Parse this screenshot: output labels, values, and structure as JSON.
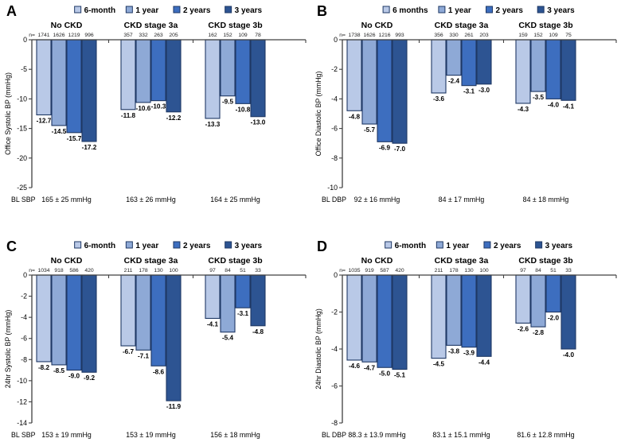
{
  "figure": {
    "type": "four-panel-grouped-bar-figure",
    "background": "#ffffff",
    "series_colors": [
      "#b9c9e7",
      "#8ea9d6",
      "#3d6ebf",
      "#2d5492"
    ],
    "bar_border_color": "#1f3864",
    "axis_color": "#404040",
    "text_color": "#000000",
    "n_prefix": "n="
  },
  "chart_data": [
    {
      "type": "bar",
      "panel_letter": "A",
      "ylabel": "Office Systolic BP (mmHg)",
      "ylim": [
        -25,
        0
      ],
      "ytick_step": 5,
      "grid": false,
      "legend_position": "top",
      "legend": [
        "6-month",
        "1 year",
        "2 years",
        "3 years"
      ],
      "categories": [
        "No CKD",
        "CKD  stage 3a",
        "CKD stage 3b"
      ],
      "series": [
        {
          "name": "6-month",
          "values": [
            -12.7,
            -11.8,
            -13.3
          ],
          "n": [
            1741,
            357,
            162
          ]
        },
        {
          "name": "1 year",
          "values": [
            -14.5,
            -10.6,
            -9.5
          ],
          "n": [
            1626,
            332,
            152
          ]
        },
        {
          "name": "2 years",
          "values": [
            -15.7,
            -10.3,
            -10.8
          ],
          "n": [
            1219,
            263,
            109
          ]
        },
        {
          "name": "3 years",
          "values": [
            -17.2,
            -12.2,
            -13.0
          ],
          "n": [
            996,
            205,
            78
          ]
        }
      ],
      "baseline_row": {
        "label": "BL SBP",
        "values": [
          "165 ± 25 mmHg",
          "163 ± 26 mmHg",
          "164 ± 25 mmHg"
        ]
      }
    },
    {
      "type": "bar",
      "panel_letter": "B",
      "ylabel": "Office Diastolic BP (mmHg)",
      "ylim": [
        -10,
        0
      ],
      "ytick_step": 2,
      "grid": false,
      "legend_position": "top",
      "legend": [
        "6 months",
        "1 year",
        "2 years",
        "3 years"
      ],
      "categories": [
        "No CKD",
        "CKD stage 3a",
        "CKD stage 3b"
      ],
      "series": [
        {
          "name": "6 months",
          "values": [
            -4.8,
            -3.6,
            -4.3
          ],
          "n": [
            1738,
            356,
            159
          ]
        },
        {
          "name": "1 year",
          "values": [
            -5.7,
            -2.4,
            -3.5
          ],
          "n": [
            1626,
            330,
            152
          ]
        },
        {
          "name": "2 years",
          "values": [
            -6.9,
            -3.1,
            -4.0
          ],
          "n": [
            1216,
            261,
            109
          ]
        },
        {
          "name": "3 years",
          "values": [
            -7.0,
            -3.0,
            -4.1
          ],
          "n": [
            993,
            203,
            75
          ]
        }
      ],
      "baseline_row": {
        "label": "BL DBP",
        "values": [
          "92 ± 16 mmHg",
          "84 ± 17 mmHg",
          "84 ± 18 mmHg"
        ]
      }
    },
    {
      "type": "bar",
      "panel_letter": "C",
      "ylabel": "24hr Systolic BP (mmHg)",
      "ylim": [
        -14,
        0
      ],
      "ytick_step": 2,
      "grid": false,
      "legend_position": "top",
      "legend": [
        "6-month",
        "1 year",
        "2 years",
        "3 years"
      ],
      "categories": [
        "No CKD",
        "CKD stage 3a",
        "CKD stage 3b"
      ],
      "series": [
        {
          "name": "6-month",
          "values": [
            -8.2,
            -6.7,
            -4.1
          ],
          "n": [
            1034,
            211,
            97
          ]
        },
        {
          "name": "1 year",
          "values": [
            -8.5,
            -7.1,
            -5.4
          ],
          "n": [
            918,
            178,
            84
          ]
        },
        {
          "name": "2 years",
          "values": [
            -9.0,
            -8.6,
            -3.1
          ],
          "n": [
            586,
            130,
            51
          ]
        },
        {
          "name": "3 years",
          "values": [
            -9.2,
            -11.9,
            -4.8
          ],
          "n": [
            420,
            100,
            33
          ]
        }
      ],
      "baseline_row": {
        "label": "BL SBP",
        "values": [
          "153 ± 19 mmHg",
          "153 ± 19 mmHg",
          "156 ± 18 mmHg"
        ]
      }
    },
    {
      "type": "bar",
      "panel_letter": "D",
      "ylabel": "24hr Diastolic BP (mmHg)",
      "ylim": [
        -8,
        0
      ],
      "ytick_step": 2,
      "grid": false,
      "legend_position": "top",
      "legend": [
        "6-month",
        "1 year",
        "2 years",
        "3 years"
      ],
      "categories": [
        "No CKD",
        "CKD stage 3a",
        "CKD stage 3b"
      ],
      "series": [
        {
          "name": "6-month",
          "values": [
            -4.6,
            -4.5,
            -2.6
          ],
          "n": [
            1035,
            211,
            97
          ]
        },
        {
          "name": "1 year",
          "values": [
            -4.7,
            -3.8,
            -2.8
          ],
          "n": [
            919,
            178,
            84
          ]
        },
        {
          "name": "2 years",
          "values": [
            -5.0,
            -3.9,
            -2.0
          ],
          "n": [
            587,
            130,
            51
          ]
        },
        {
          "name": "3 years",
          "values": [
            -5.1,
            -4.4,
            -4.0
          ],
          "n": [
            420,
            100,
            33
          ]
        }
      ],
      "baseline_row": {
        "label": "BL DBP",
        "values": [
          "88.3 ± 13.9 mmHg",
          "83.1 ± 15.1 mmHg",
          "81.6 ± 12.8 mmHg"
        ]
      }
    }
  ]
}
